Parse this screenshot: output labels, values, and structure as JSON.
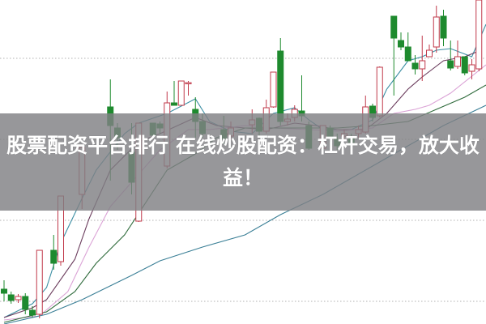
{
  "banner": {
    "title": "股票配资平台排行 在线炒股配资：杠杆交易，放大收益！"
  },
  "chart_data": {
    "type": "candlestick",
    "title": "",
    "xlabel": "",
    "ylabel": "",
    "xlim": [
      -0.6,
      68
    ],
    "ylim": [
      7.2,
      47.2
    ],
    "grid": {
      "horizontal": true,
      "style": "dotted",
      "levels": [
        10,
        20,
        30,
        40
      ]
    },
    "colors": {
      "up": "#c0394a",
      "down": "#1e8a2e",
      "grid": "#b0b0b0"
    },
    "candles_fields": [
      "day",
      "open",
      "close",
      "high",
      "low"
    ],
    "candles": [
      [
        0,
        11.5,
        11.0,
        12.6,
        10.0
      ],
      [
        1,
        10.8,
        10.1,
        11.2,
        9.7
      ],
      [
        2,
        10.2,
        10.6,
        10.9,
        9.8
      ],
      [
        3,
        10.6,
        9.0,
        11.0,
        8.4
      ],
      [
        4,
        8.9,
        8.3,
        9.4,
        8.0
      ],
      [
        5,
        8.4,
        16.3,
        16.3,
        7.9
      ],
      [
        7,
        16.3,
        14.7,
        18.2,
        13.9
      ],
      [
        8,
        14.9,
        23.0,
        23.0,
        14.4
      ],
      [
        11,
        23.2,
        29.0,
        29.0,
        21.4
      ],
      [
        15,
        34.0,
        31.7,
        37.4,
        24.9
      ],
      [
        16,
        31.4,
        30.2,
        32.0,
        28.7
      ],
      [
        18,
        28.4,
        24.7,
        32.0,
        23.2
      ],
      [
        19,
        19.9,
        32.0,
        32.0,
        19.8
      ],
      [
        21,
        32.0,
        30.5,
        32.0,
        30.2
      ],
      [
        22,
        31.9,
        31.4,
        32.2,
        30.7
      ],
      [
        23,
        26.7,
        34.5,
        35.9,
        26.4
      ],
      [
        24,
        34.5,
        34.2,
        37.2,
        34.2
      ],
      [
        25,
        34.2,
        37.2,
        37.2,
        34.2
      ],
      [
        26,
        37.0,
        37.0,
        37.2,
        35.4
      ],
      [
        27,
        33.7,
        32.2,
        35.2,
        30.2
      ],
      [
        28,
        32.2,
        30.7,
        33.2,
        30.2
      ],
      [
        31,
        31.2,
        30.0,
        32.9,
        29.4
      ],
      [
        32,
        30.4,
        31.4,
        32.2,
        30.0
      ],
      [
        35,
        31.8,
        32.4,
        33.7,
        30.7
      ],
      [
        36,
        32.6,
        31.0,
        32.7,
        30.2
      ],
      [
        37,
        31.0,
        33.9,
        34.9,
        30.7
      ],
      [
        38,
        34.0,
        38.3,
        38.3,
        33.9
      ],
      [
        39,
        40.9,
        32.2,
        42.5,
        31.7
      ],
      [
        40,
        32.2,
        32.5,
        33.2,
        31.7
      ],
      [
        41,
        32.7,
        33.7,
        34.2,
        32.2
      ],
      [
        42,
        33.5,
        32.9,
        37.9,
        32.2
      ],
      [
        43,
        31.7,
        28.9,
        32.2,
        28.7
      ],
      [
        45,
        28.9,
        31.7,
        31.7,
        28.7
      ],
      [
        46,
        31.4,
        30.1,
        31.7,
        29.7
      ],
      [
        47,
        30.0,
        29.2,
        30.7,
        28.7
      ],
      [
        48,
        30.4,
        30.7,
        31.2,
        30.0
      ],
      [
        49,
        30.2,
        29.6,
        30.7,
        29.2
      ],
      [
        50,
        30.7,
        31.2,
        31.7,
        30.2
      ],
      [
        51,
        30.9,
        34.0,
        35.4,
        30.7
      ],
      [
        52,
        34.1,
        32.7,
        34.4,
        32.2
      ],
      [
        53,
        32.9,
        38.9,
        39.0,
        32.7
      ],
      [
        55,
        45.2,
        42.5,
        45.2,
        35.4
      ],
      [
        56,
        42.2,
        41.4,
        43.2,
        41.0
      ],
      [
        57,
        41.4,
        39.7,
        43.2,
        39.7
      ],
      [
        58,
        39.4,
        38.7,
        40.4,
        38.0
      ],
      [
        59,
        38.7,
        39.7,
        42.8,
        37.2
      ],
      [
        60,
        40.2,
        41.0,
        41.7,
        40.2
      ],
      [
        61,
        41.4,
        45.1,
        46.5,
        40.7
      ],
      [
        62,
        45.2,
        42.5,
        46.0,
        41.5
      ],
      [
        63,
        39.7,
        38.8,
        42.2,
        38.5
      ],
      [
        64,
        39.0,
        40.2,
        42.2,
        38.7
      ],
      [
        65,
        40.2,
        38.2,
        40.2,
        37.9
      ],
      [
        66,
        38.4,
        39.2,
        39.9,
        37.4
      ],
      [
        67,
        38.7,
        47.2,
        47.2,
        38.4
      ]
    ],
    "moving_averages": [
      {
        "color": "#3b8ea3",
        "points": [
          [
            0,
            8.0
          ],
          [
            4,
            9.7
          ],
          [
            6,
            11.7
          ],
          [
            8,
            17.2
          ],
          [
            11,
            22.7
          ],
          [
            13,
            26.2
          ],
          [
            17,
            30.7
          ],
          [
            19,
            32.0
          ],
          [
            23,
            33.2
          ],
          [
            27,
            35.0
          ],
          [
            29,
            32.2
          ],
          [
            32,
            31.0
          ],
          [
            35,
            30.7
          ],
          [
            38,
            33.2
          ],
          [
            41,
            33.9
          ],
          [
            43,
            32.4
          ],
          [
            45,
            31.2
          ],
          [
            49,
            31.2
          ],
          [
            52,
            32.4
          ],
          [
            54,
            36.2
          ],
          [
            57,
            39.7
          ],
          [
            59,
            40.2
          ],
          [
            61,
            41.0
          ],
          [
            63,
            41.2
          ],
          [
            66,
            40.2
          ],
          [
            68,
            44.2
          ]
        ]
      },
      {
        "color": "#6a3b5c",
        "points": [
          [
            0,
            8.0
          ],
          [
            4,
            9.2
          ],
          [
            6,
            10.2
          ],
          [
            10,
            15.2
          ],
          [
            12,
            20.2
          ],
          [
            15,
            26.2
          ],
          [
            19,
            29.7
          ],
          [
            22,
            30.7
          ],
          [
            27,
            32.7
          ],
          [
            30,
            31.7
          ],
          [
            34,
            31.4
          ],
          [
            37,
            31.2
          ],
          [
            41,
            32.0
          ],
          [
            44,
            31.7
          ],
          [
            47,
            31.2
          ],
          [
            51,
            31.2
          ],
          [
            54,
            33.2
          ],
          [
            57,
            36.2
          ],
          [
            59,
            37.7
          ],
          [
            62,
            39.7
          ],
          [
            65,
            40.2
          ],
          [
            67,
            40.9
          ]
        ]
      },
      {
        "color": "#dba3d6",
        "points": [
          [
            0,
            7.7
          ],
          [
            5,
            8.2
          ],
          [
            9,
            11.2
          ],
          [
            12,
            16.7
          ],
          [
            15,
            21.7
          ],
          [
            19,
            25.7
          ],
          [
            22,
            28.7
          ],
          [
            26,
            31.2
          ],
          [
            29,
            31.2
          ],
          [
            34,
            31.7
          ],
          [
            38,
            31.4
          ],
          [
            43,
            31.2
          ],
          [
            47,
            31.0
          ],
          [
            52,
            31.4
          ],
          [
            55,
            33.2
          ],
          [
            58,
            33.7
          ],
          [
            60,
            34.2
          ],
          [
            63,
            35.7
          ],
          [
            68,
            39.2
          ]
        ]
      },
      {
        "color": "#2f6b3c",
        "points": [
          [
            0,
            7.4
          ],
          [
            6,
            8.7
          ],
          [
            10,
            11.2
          ],
          [
            13,
            14.7
          ],
          [
            17,
            18.2
          ],
          [
            20,
            22.2
          ],
          [
            23,
            26.2
          ],
          [
            27,
            28.2
          ],
          [
            30,
            30.2
          ],
          [
            34,
            31.4
          ],
          [
            38,
            31.4
          ],
          [
            43,
            31.4
          ],
          [
            47,
            31.4
          ],
          [
            52,
            31.7
          ],
          [
            57,
            32.2
          ],
          [
            61,
            33.7
          ],
          [
            65,
            35.2
          ],
          [
            68,
            36.7
          ]
        ]
      },
      {
        "color": "#3a7f96",
        "points": [
          [
            0,
            7.2
          ],
          [
            6,
            8.4
          ],
          [
            11,
            10.2
          ],
          [
            18,
            13.2
          ],
          [
            22,
            15.0
          ],
          [
            28,
            16.7
          ],
          [
            34,
            18.2
          ],
          [
            39,
            20.7
          ],
          [
            45,
            23.2
          ],
          [
            51,
            26.2
          ],
          [
            57,
            29.2
          ],
          [
            62,
            31.7
          ],
          [
            68,
            34.2
          ]
        ]
      }
    ]
  }
}
